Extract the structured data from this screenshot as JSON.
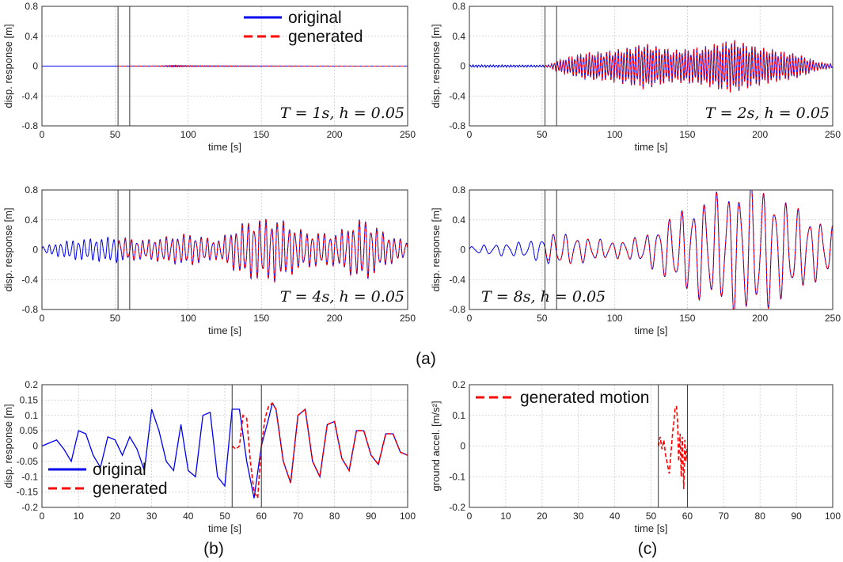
{
  "colors": {
    "original": "#0000ee",
    "generated": "#ff0000",
    "grid": "#cccccc",
    "marker": "#222222"
  },
  "panel_labels": {
    "a": "(a)",
    "b": "(b)",
    "c": "(c)"
  },
  "chart_data": [
    {
      "id": "a1",
      "type": "line",
      "xlabel": "time [s]",
      "ylabel": "disp. response [m]",
      "xlim": [
        0,
        250
      ],
      "ylim": [
        -0.8,
        0.8
      ],
      "xticks": [
        0,
        50,
        100,
        150,
        200,
        250
      ],
      "xtick_labels": [
        "0",
        "50",
        "100",
        "150",
        "200",
        "250"
      ],
      "yticks": [
        -0.8,
        -0.4,
        0,
        0.4,
        0.8
      ],
      "ytick_labels": [
        "-0.8",
        "-0.4",
        "0",
        "0.4",
        "0.8"
      ],
      "vlines": [
        52,
        60
      ],
      "annotation": "T = 1s, h = 0.05",
      "annotation_pos": "bottom-right",
      "legend": [
        "original",
        "generated"
      ],
      "legend_pos": "top-center",
      "signal": {
        "period": 1.0,
        "amp": 0.012,
        "gen_start": 52,
        "envelope": [
          [
            0,
            0.02
          ],
          [
            50,
            0.02
          ],
          [
            80,
            0.12
          ],
          [
            90,
            0.8
          ],
          [
            100,
            0.45
          ],
          [
            120,
            0.3
          ],
          [
            150,
            0.15
          ],
          [
            180,
            0.05
          ],
          [
            250,
            0.02
          ]
        ]
      },
      "series": [
        {
          "name": "original",
          "style": "solid"
        },
        {
          "name": "generated",
          "style": "dashed"
        }
      ]
    },
    {
      "id": "a2",
      "type": "line",
      "xlabel": "time [s]",
      "ylabel": "disp. response [m]",
      "xlim": [
        0,
        250
      ],
      "ylim": [
        -0.8,
        0.8
      ],
      "xticks": [
        0,
        50,
        100,
        150,
        200,
        250
      ],
      "xtick_labels": [
        "0",
        "50",
        "100",
        "150",
        "200",
        "250"
      ],
      "yticks": [
        -0.8,
        -0.4,
        0,
        0.4,
        0.8
      ],
      "ytick_labels": [
        "-0.8",
        "-0.4",
        "0",
        "0.4",
        "0.8"
      ],
      "vlines": [
        52,
        60
      ],
      "annotation": "T = 2s, h = 0.05",
      "annotation_pos": "bottom-right",
      "legend": [],
      "signal": {
        "period": 2.0,
        "amp": 0.29,
        "gen_start": 52,
        "envelope": [
          [
            0,
            0.05
          ],
          [
            50,
            0.04
          ],
          [
            55,
            0.05
          ],
          [
            60,
            0.2
          ],
          [
            80,
            0.5
          ],
          [
            95,
            0.55
          ],
          [
            110,
            0.7
          ],
          [
            120,
            0.85
          ],
          [
            140,
            0.6
          ],
          [
            160,
            0.7
          ],
          [
            180,
            1.0
          ],
          [
            200,
            0.7
          ],
          [
            225,
            0.45
          ],
          [
            240,
            0.15
          ],
          [
            250,
            0.08
          ]
        ]
      },
      "series": [
        {
          "name": "original",
          "style": "solid"
        },
        {
          "name": "generated",
          "style": "dashed"
        }
      ]
    },
    {
      "id": "a3",
      "type": "line",
      "xlabel": "time [s]",
      "ylabel": "disp. response [m]",
      "xlim": [
        0,
        250
      ],
      "ylim": [
        -0.8,
        0.8
      ],
      "xticks": [
        0,
        50,
        100,
        150,
        200,
        250
      ],
      "xtick_labels": [
        "0",
        "50",
        "100",
        "150",
        "200",
        "250"
      ],
      "yticks": [
        -0.8,
        -0.4,
        0,
        0.4,
        0.8
      ],
      "ytick_labels": [
        "-0.8",
        "-0.4",
        "0",
        "0.4",
        "0.8"
      ],
      "vlines": [
        52,
        60
      ],
      "annotation": "T = 4s, h = 0.05",
      "annotation_pos": "bottom-right",
      "legend": [],
      "signal": {
        "period": 4.0,
        "amp": 0.35,
        "gen_start": 52,
        "envelope": [
          [
            0,
            0.1
          ],
          [
            20,
            0.3
          ],
          [
            50,
            0.4
          ],
          [
            70,
            0.3
          ],
          [
            100,
            0.5
          ],
          [
            120,
            0.3
          ],
          [
            140,
            0.9
          ],
          [
            160,
            1.0
          ],
          [
            180,
            0.55
          ],
          [
            200,
            0.5
          ],
          [
            220,
            1.0
          ],
          [
            235,
            0.5
          ],
          [
            250,
            0.25
          ]
        ]
      },
      "series": [
        {
          "name": "original",
          "style": "solid"
        },
        {
          "name": "generated",
          "style": "dashed"
        }
      ]
    },
    {
      "id": "a4",
      "type": "line",
      "xlabel": "time [s]",
      "ylabel": "disp. response [m]",
      "xlim": [
        0,
        250
      ],
      "ylim": [
        -0.8,
        0.8
      ],
      "xticks": [
        0,
        50,
        100,
        150,
        200,
        250
      ],
      "xtick_labels": [
        "0",
        "50",
        "100",
        "150",
        "200",
        "250"
      ],
      "yticks": [
        -0.8,
        -0.4,
        0,
        0.4,
        0.8
      ],
      "ytick_labels": [
        "-0.8",
        "-0.4",
        "0",
        "0.4",
        "0.8"
      ],
      "vlines": [
        52,
        60
      ],
      "annotation": "T = 8s, h = 0.05",
      "annotation_pos": "bottom-left",
      "legend": [],
      "signal": {
        "period": 8.0,
        "amp": 0.75,
        "gen_start": 52,
        "envelope": [
          [
            0,
            0.05
          ],
          [
            40,
            0.12
          ],
          [
            60,
            0.25
          ],
          [
            100,
            0.12
          ],
          [
            120,
            0.2
          ],
          [
            140,
            0.5
          ],
          [
            160,
            0.75
          ],
          [
            180,
            0.9
          ],
          [
            195,
            1.0
          ],
          [
            215,
            0.75
          ],
          [
            235,
            0.5
          ],
          [
            250,
            0.35
          ]
        ]
      },
      "series": [
        {
          "name": "original",
          "style": "solid"
        },
        {
          "name": "generated",
          "style": "dashed"
        }
      ]
    },
    {
      "id": "b",
      "type": "line",
      "xlabel": "time [s]",
      "ylabel": "disp. response [m]",
      "xlim": [
        0,
        100
      ],
      "ylim": [
        -0.2,
        0.2
      ],
      "xticks": [
        0,
        10,
        20,
        30,
        40,
        50,
        60,
        70,
        80,
        90,
        100
      ],
      "xtick_labels": [
        "0",
        "10",
        "20",
        "30",
        "40",
        "50",
        "60",
        "70",
        "80",
        "90",
        "100"
      ],
      "yticks": [
        -0.2,
        -0.15,
        -0.1,
        -0.05,
        0,
        0.05,
        0.1,
        0.15,
        0.2
      ],
      "ytick_labels": [
        "-0.2",
        "-0.15",
        "-0.1",
        "-0.05",
        "0",
        "0.05",
        "0.1",
        "0.15",
        "0.2"
      ],
      "vlines": [
        52,
        60
      ],
      "legend": [
        "original",
        "generated"
      ],
      "legend_pos": "bottom-left",
      "series": [
        {
          "name": "original",
          "style": "solid",
          "x": [
            0,
            2,
            4,
            6,
            8,
            10,
            12,
            14,
            16,
            18,
            20,
            22,
            24,
            26,
            28,
            30,
            32,
            34,
            36,
            38,
            40,
            42,
            44,
            46,
            48,
            50,
            52,
            54,
            56,
            58,
            60,
            62,
            63,
            64,
            66,
            68,
            70,
            72,
            74,
            76,
            78,
            80,
            82,
            84,
            86,
            88,
            90,
            92,
            94,
            96,
            98,
            100
          ],
          "y": [
            0,
            0.01,
            0.02,
            -0.01,
            -0.05,
            0.05,
            0.04,
            -0.03,
            -0.07,
            0.03,
            0.02,
            -0.03,
            0.03,
            -0.01,
            -0.08,
            0.12,
            0.05,
            -0.05,
            -0.08,
            0.07,
            -0.08,
            -0.1,
            0.1,
            0.11,
            -0.1,
            -0.13,
            0.12,
            0.12,
            -0.05,
            -0.17,
            0,
            0.09,
            0.14,
            0.12,
            -0.05,
            -0.12,
            0.1,
            0.12,
            -0.05,
            -0.1,
            0.07,
            0.08,
            -0.04,
            -0.08,
            0.05,
            0.05,
            -0.03,
            -0.06,
            0.04,
            0.04,
            -0.02,
            -0.03
          ]
        },
        {
          "name": "generated",
          "style": "dashed",
          "x": [
            52,
            53,
            54,
            55,
            56,
            57,
            58,
            59,
            60,
            61,
            62,
            63,
            64,
            66,
            68,
            70,
            72,
            74,
            76,
            78,
            80,
            82,
            84,
            86,
            88,
            90,
            92,
            94,
            96,
            98,
            100
          ],
          "y": [
            0,
            -0.01,
            0.0,
            0.1,
            0.09,
            -0.05,
            -0.15,
            -0.17,
            0,
            0.09,
            0.13,
            0.14,
            0.12,
            -0.05,
            -0.12,
            0.1,
            0.12,
            -0.05,
            -0.1,
            0.07,
            0.08,
            -0.04,
            -0.08,
            0.05,
            0.05,
            -0.03,
            -0.06,
            0.04,
            0.04,
            -0.02,
            -0.03
          ]
        }
      ]
    },
    {
      "id": "c",
      "type": "line",
      "xlabel": "time [s]",
      "ylabel": "ground accel. [m/s²]",
      "xlim": [
        0,
        100
      ],
      "ylim": [
        -0.2,
        0.2
      ],
      "xticks": [
        0,
        10,
        20,
        30,
        40,
        50,
        60,
        70,
        80,
        90,
        100
      ],
      "xtick_labels": [
        "0",
        "10",
        "20",
        "30",
        "40",
        "50",
        "60",
        "70",
        "80",
        "90",
        "100"
      ],
      "yticks": [
        -0.2,
        -0.1,
        0,
        0.1,
        0.2
      ],
      "ytick_labels": [
        "-0.2",
        "-0.1",
        "0",
        "0.1",
        "0.2"
      ],
      "vlines": [
        52,
        60
      ],
      "legend": [
        "generated motion"
      ],
      "legend_pos": "top-left",
      "series": [
        {
          "name": "generated motion",
          "style": "dashed",
          "x": [
            52,
            52.5,
            53,
            53.5,
            54,
            54.5,
            55,
            55.5,
            56,
            56.3,
            56.6,
            57,
            57.3,
            57.6,
            58,
            58.3,
            58.6,
            59,
            59.3,
            59.6,
            60
          ],
          "y": [
            0,
            0.03,
            -0.01,
            0.02,
            -0.03,
            -0.06,
            -0.09,
            -0.02,
            0.05,
            0.08,
            0.12,
            0.13,
            0.08,
            -0.05,
            0.04,
            -0.1,
            0.03,
            -0.14,
            0.02,
            -0.05,
            0
          ]
        }
      ]
    }
  ]
}
